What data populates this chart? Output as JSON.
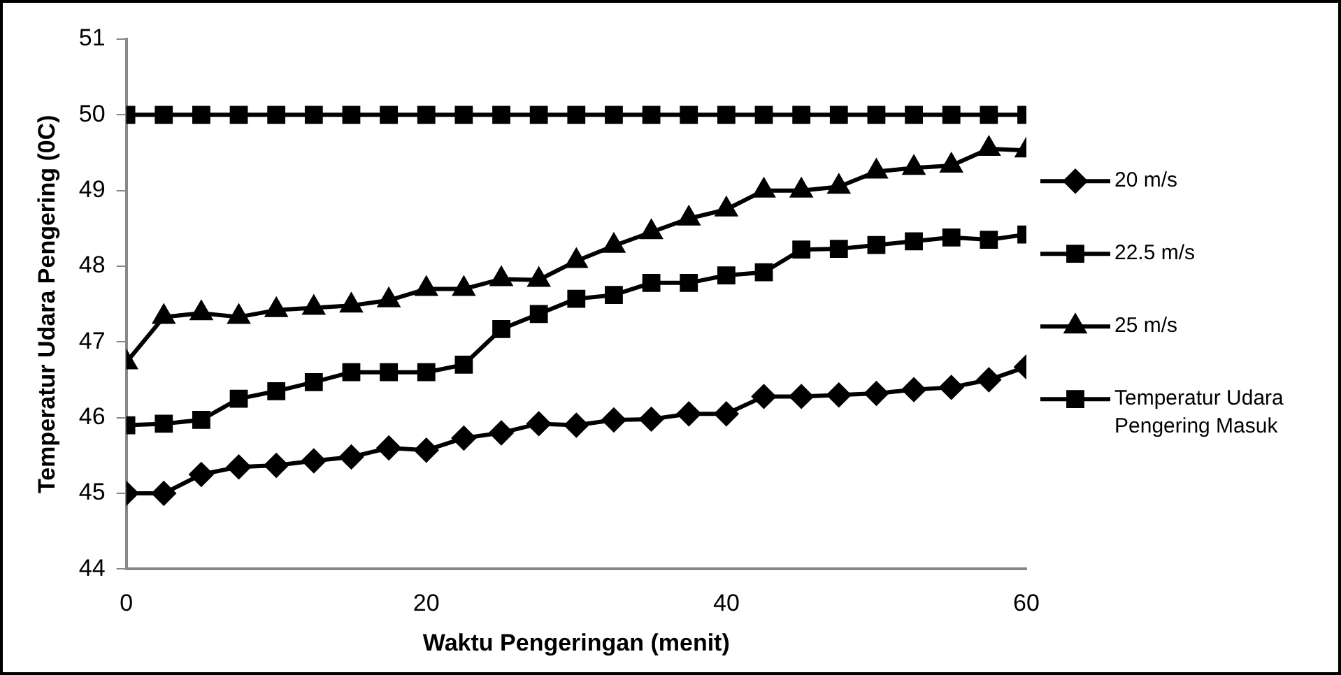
{
  "chart_data": {
    "type": "line",
    "xlabel": "Waktu Pengeringan (menit)",
    "ylabel": "Temperatur Udara Pengering (0C)",
    "x": [
      0,
      2.5,
      5,
      7.5,
      10,
      12.5,
      15,
      17.5,
      20,
      22.5,
      25,
      27.5,
      30,
      32.5,
      35,
      37.5,
      40,
      42.5,
      45,
      47.5,
      50,
      52.5,
      55,
      57.5,
      60
    ],
    "series": [
      {
        "name": "20 m/s",
        "color": "#000000",
        "marker": "diamond",
        "values": [
          45,
          45,
          45.25,
          45.35,
          45.37,
          45.43,
          45.48,
          45.6,
          45.57,
          45.73,
          45.8,
          45.92,
          45.9,
          45.97,
          45.98,
          46.05,
          46.05,
          46.28,
          46.28,
          46.3,
          46.32,
          46.37,
          46.4,
          46.5,
          46.67
        ]
      },
      {
        "name": "22.5 m/s",
        "color": "#000000",
        "marker": "square",
        "values": [
          45.9,
          45.92,
          45.97,
          46.25,
          46.35,
          46.47,
          46.6,
          46.6,
          46.6,
          46.7,
          47.17,
          47.37,
          47.57,
          47.62,
          47.78,
          47.78,
          47.88,
          47.92,
          48.22,
          48.23,
          48.28,
          48.33,
          48.38,
          48.35,
          48.42
        ]
      },
      {
        "name": "25 m/s",
        "color": "#000000",
        "marker": "triangle",
        "values": [
          46.73,
          47.33,
          47.38,
          47.33,
          47.42,
          47.45,
          47.48,
          47.55,
          47.7,
          47.7,
          47.83,
          47.82,
          48.07,
          48.27,
          48.45,
          48.63,
          48.75,
          49.0,
          49.0,
          49.05,
          49.25,
          49.3,
          49.33,
          49.55,
          49.53
        ]
      },
      {
        "name": "Temperatur Udara Pengering Masuk",
        "color": "#000000",
        "marker": "square",
        "values": [
          50,
          50,
          50,
          50,
          50,
          50,
          50,
          50,
          50,
          50,
          50,
          50,
          50,
          50,
          50,
          50,
          50,
          50,
          50,
          50,
          50,
          50,
          50,
          50,
          50
        ]
      }
    ],
    "xlim": [
      0,
      60
    ],
    "xticks": [
      0,
      20,
      40,
      60
    ],
    "ylim": [
      44,
      51
    ],
    "yticks": [
      44,
      45,
      46,
      47,
      48,
      49,
      50,
      51
    ],
    "grid": false,
    "legend": "right",
    "line_style": "solid"
  }
}
